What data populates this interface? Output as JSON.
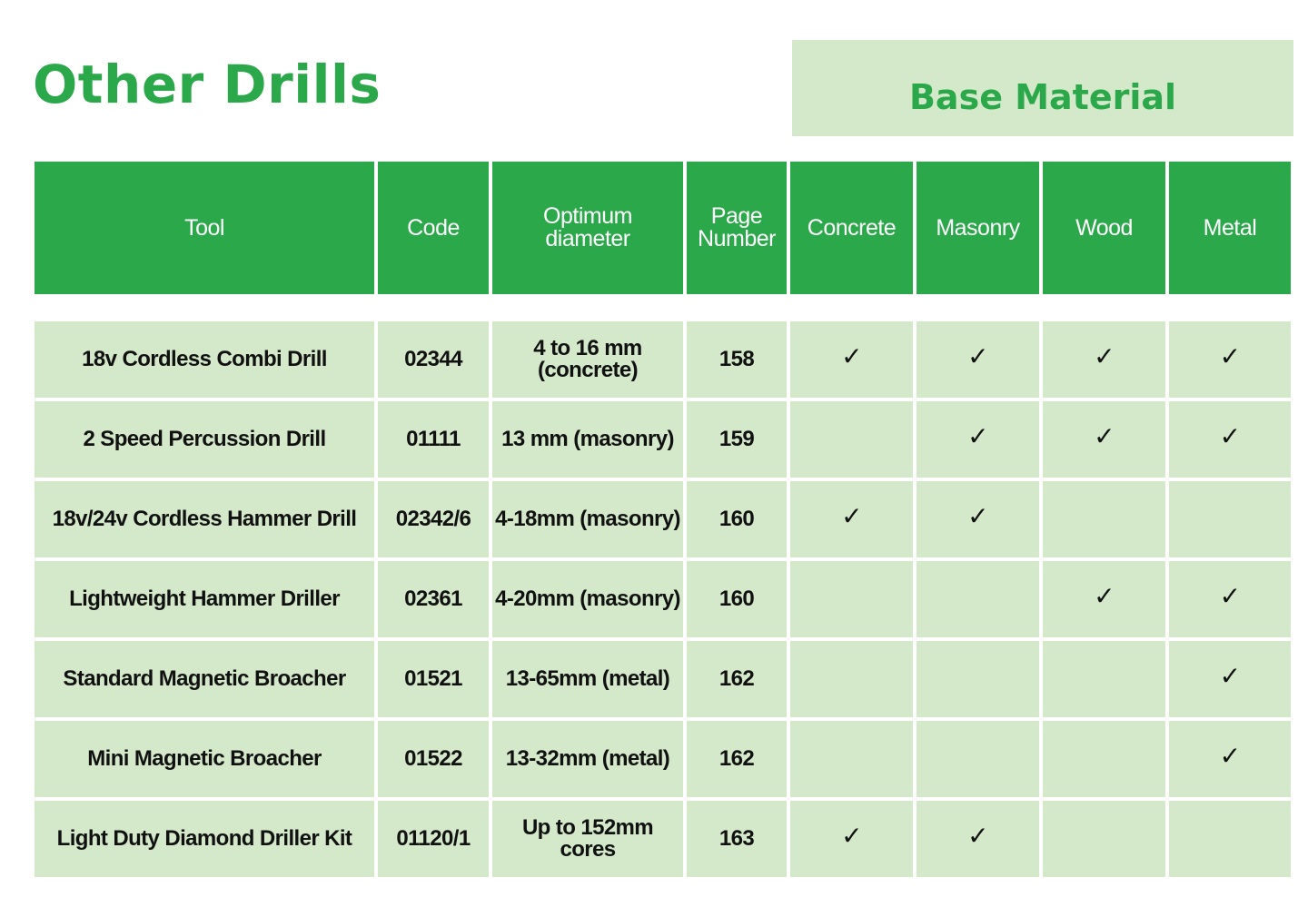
{
  "title": "Other Drills",
  "base_material_label": "Base Material",
  "headers": {
    "tool": "Tool",
    "code": "Code",
    "diameter_line1": "Optimum",
    "diameter_line2": "diameter",
    "page_line1": "Page",
    "page_line2": "Number",
    "concrete": "Concrete",
    "masonry": "Masonry",
    "wood": "Wood",
    "metal": "Metal"
  },
  "check_mark": "✓",
  "rows": [
    {
      "tool": "18v Cordless Combi Drill",
      "code": "02344",
      "diameter_line1": "4 to 16 mm",
      "diameter_line2": "(concrete)",
      "page": "158",
      "concrete": "✓",
      "masonry": "✓",
      "wood": "✓",
      "metal": "✓"
    },
    {
      "tool": "2 Speed Percussion Drill",
      "code": "01111",
      "diameter_line1": "13 mm (masonry)",
      "diameter_line2": "",
      "page": "159",
      "concrete": "",
      "masonry": "✓",
      "wood": "✓",
      "metal": "✓"
    },
    {
      "tool": "18v/24v Cordless Hammer Drill",
      "code": "02342/6",
      "diameter_line1": "4-18mm (masonry)",
      "diameter_line2": "",
      "page": "160",
      "concrete": "✓",
      "masonry": "✓",
      "wood": "",
      "metal": ""
    },
    {
      "tool": "Lightweight Hammer Driller",
      "code": "02361",
      "diameter_line1": "4-20mm (masonry)",
      "diameter_line2": "",
      "page": "160",
      "concrete": "",
      "masonry": "",
      "wood": "✓",
      "metal": "✓"
    },
    {
      "tool": "Standard Magnetic Broacher",
      "code": "01521",
      "diameter_line1": "13-65mm (metal)",
      "diameter_line2": "",
      "page": "162",
      "concrete": "",
      "masonry": "",
      "wood": "",
      "metal": "✓"
    },
    {
      "tool": "Mini Magnetic Broacher",
      "code": "01522",
      "diameter_line1": "13-32mm (metal)",
      "diameter_line2": "",
      "page": "162",
      "concrete": "",
      "masonry": "",
      "wood": "",
      "metal": "✓"
    },
    {
      "tool": "Light Duty Diamond Driller Kit",
      "code": "01120/1",
      "diameter_line1": "Up to 152mm cores",
      "diameter_line2": "",
      "page": "163",
      "concrete": "✓",
      "masonry": "✓",
      "wood": "",
      "metal": ""
    }
  ],
  "colors": {
    "green": "#2aa84a",
    "light_green": "#d4e8ca"
  }
}
